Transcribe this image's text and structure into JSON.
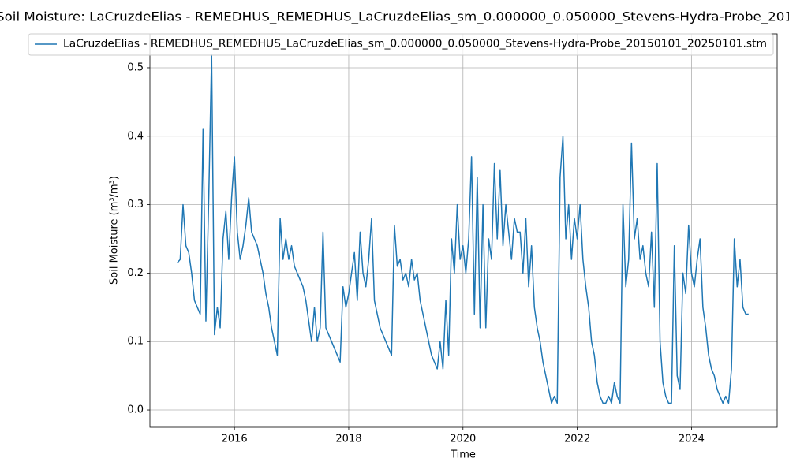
{
  "chart_data": {
    "type": "line",
    "title": "Soil Moisture: LaCruzdeElias - REMEDHUS_REMEDHUS_LaCruzdeElias_sm_0.000000_0.050000_Stevens-Hydra-Probe_201",
    "xlabel": "Time",
    "ylabel": "Soil Moisture (m³/m³)",
    "xlim": [
      2014.52,
      2025.5
    ],
    "xticks": [
      2016,
      2018,
      2020,
      2022,
      2024
    ],
    "ylim": [
      -0.0253,
      0.5495
    ],
    "yticks": [
      {
        "value": 0,
        "label": "0.0"
      },
      0.1,
      0.2,
      0.3,
      0.4,
      0.5
    ],
    "grid": true,
    "legend": "upper center",
    "x": [
      2015,
      2015.05,
      2015.1,
      2015.15,
      2015.2,
      2015.25,
      2015.3,
      2015.35,
      2015.4,
      2015.45,
      2015.5,
      2015.55,
      2015.6,
      2015.65,
      2015.7,
      2015.75,
      2015.8,
      2015.85,
      2015.9,
      2015.95,
      2016,
      2016.05,
      2016.1,
      2016.15,
      2016.2,
      2016.25,
      2016.3,
      2016.35,
      2016.4,
      2016.45,
      2016.5,
      2016.55,
      2016.6,
      2016.65,
      2016.7,
      2016.75,
      2016.8,
      2016.85,
      2016.9,
      2016.95,
      2017,
      2017.05,
      2017.1,
      2017.15,
      2017.2,
      2017.25,
      2017.3,
      2017.35,
      2017.4,
      2017.45,
      2017.5,
      2017.55,
      2017.6,
      2017.65,
      2017.7,
      2017.75,
      2017.8,
      2017.85,
      2017.9,
      2017.95,
      2018,
      2018.05,
      2018.1,
      2018.15,
      2018.2,
      2018.25,
      2018.3,
      2018.35,
      2018.4,
      2018.45,
      2018.5,
      2018.55,
      2018.6,
      2018.65,
      2018.7,
      2018.75,
      2018.8,
      2018.85,
      2018.9,
      2018.95,
      2019,
      2019.05,
      2019.1,
      2019.15,
      2019.2,
      2019.25,
      2019.3,
      2019.35,
      2019.4,
      2019.45,
      2019.5,
      2019.55,
      2019.6,
      2019.65,
      2019.7,
      2019.75,
      2019.8,
      2019.85,
      2019.9,
      2019.95,
      2020,
      2020.05,
      2020.1,
      2020.15,
      2020.2,
      2020.25,
      2020.3,
      2020.35,
      2020.4,
      2020.45,
      2020.5,
      2020.55,
      2020.6,
      2020.65,
      2020.7,
      2020.75,
      2020.8,
      2020.85,
      2020.9,
      2020.95,
      2021,
      2021.05,
      2021.1,
      2021.15,
      2021.2,
      2021.25,
      2021.3,
      2021.35,
      2021.4,
      2021.45,
      2021.5,
      2021.55,
      2021.6,
      2021.65,
      2021.7,
      2021.75,
      2021.8,
      2021.85,
      2021.9,
      2021.95,
      2022,
      2022.05,
      2022.1,
      2022.15,
      2022.2,
      2022.25,
      2022.3,
      2022.35,
      2022.4,
      2022.45,
      2022.5,
      2022.55,
      2022.6,
      2022.65,
      2022.7,
      2022.75,
      2022.8,
      2022.85,
      2022.9,
      2022.95,
      2023,
      2023.05,
      2023.1,
      2023.15,
      2023.2,
      2023.25,
      2023.3,
      2023.35,
      2023.4,
      2023.45,
      2023.5,
      2023.55,
      2023.6,
      2023.65,
      2023.7,
      2023.75,
      2023.8,
      2023.85,
      2023.9,
      2023.95,
      2024,
      2024.05,
      2024.1,
      2024.15,
      2024.2,
      2024.25,
      2024.3,
      2024.35,
      2024.4,
      2024.45,
      2024.5,
      2024.55,
      2024.6,
      2024.65,
      2024.7,
      2024.75,
      2024.8,
      2024.85,
      2024.9,
      2024.95,
      2025
    ],
    "series": [
      {
        "name": "LaCruzdeElias - REMEDHUS_REMEDHUS_LaCruzdeElias_sm_0.000000_0.050000_Stevens-Hydra-Probe_20150101_20250101.stm",
        "color": "#1f77b4",
        "values": [
          0.215,
          0.22,
          0.3,
          0.24,
          0.23,
          0.2,
          0.16,
          0.15,
          0.14,
          0.41,
          0.13,
          0.31,
          0.52,
          0.11,
          0.15,
          0.12,
          0.25,
          0.29,
          0.22,
          0.31,
          0.37,
          0.26,
          0.22,
          0.24,
          0.27,
          0.31,
          0.26,
          0.25,
          0.24,
          0.22,
          0.2,
          0.17,
          0.15,
          0.12,
          0.1,
          0.08,
          0.28,
          0.22,
          0.25,
          0.22,
          0.24,
          0.21,
          0.2,
          0.19,
          0.18,
          0.16,
          0.13,
          0.1,
          0.15,
          0.1,
          0.12,
          0.26,
          0.12,
          0.11,
          0.1,
          0.09,
          0.08,
          0.07,
          0.18,
          0.15,
          0.17,
          0.2,
          0.23,
          0.16,
          0.26,
          0.2,
          0.18,
          0.22,
          0.28,
          0.16,
          0.14,
          0.12,
          0.11,
          0.1,
          0.09,
          0.08,
          0.27,
          0.21,
          0.22,
          0.19,
          0.2,
          0.18,
          0.22,
          0.19,
          0.2,
          0.16,
          0.14,
          0.12,
          0.1,
          0.08,
          0.07,
          0.06,
          0.1,
          0.06,
          0.16,
          0.08,
          0.25,
          0.2,
          0.3,
          0.22,
          0.24,
          0.2,
          0.25,
          0.37,
          0.14,
          0.34,
          0.12,
          0.3,
          0.12,
          0.25,
          0.22,
          0.36,
          0.25,
          0.35,
          0.24,
          0.3,
          0.26,
          0.22,
          0.28,
          0.26,
          0.26,
          0.2,
          0.28,
          0.18,
          0.24,
          0.15,
          0.12,
          0.1,
          0.07,
          0.05,
          0.03,
          0.01,
          0.02,
          0.01,
          0.34,
          0.4,
          0.25,
          0.3,
          0.22,
          0.28,
          0.25,
          0.3,
          0.22,
          0.18,
          0.15,
          0.1,
          0.08,
          0.04,
          0.02,
          0.01,
          0.01,
          0.02,
          0.01,
          0.04,
          0.02,
          0.01,
          0.3,
          0.18,
          0.22,
          0.39,
          0.25,
          0.28,
          0.22,
          0.24,
          0.2,
          0.18,
          0.26,
          0.15,
          0.36,
          0.1,
          0.04,
          0.02,
          0.01,
          0.01,
          0.24,
          0.05,
          0.03,
          0.2,
          0.17,
          0.27,
          0.2,
          0.18,
          0.22,
          0.25,
          0.15,
          0.12,
          0.08,
          0.06,
          0.05,
          0.03,
          0.02,
          0.01,
          0.02,
          0.01,
          0.06,
          0.25,
          0.18,
          0.22,
          0.15,
          0.14,
          0.14
        ]
      }
    ]
  }
}
